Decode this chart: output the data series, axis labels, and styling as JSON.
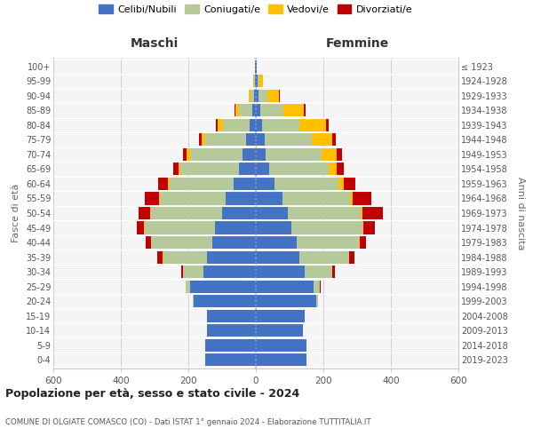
{
  "age_groups": [
    "0-4",
    "5-9",
    "10-14",
    "15-19",
    "20-24",
    "25-29",
    "30-34",
    "35-39",
    "40-44",
    "45-49",
    "50-54",
    "55-59",
    "60-64",
    "65-69",
    "70-74",
    "75-79",
    "80-84",
    "85-89",
    "90-94",
    "95-99",
    "100+"
  ],
  "birth_years": [
    "2019-2023",
    "2014-2018",
    "2009-2013",
    "2004-2008",
    "1999-2003",
    "1994-1998",
    "1989-1993",
    "1984-1988",
    "1979-1983",
    "1974-1978",
    "1969-1973",
    "1964-1968",
    "1959-1963",
    "1954-1958",
    "1949-1953",
    "1944-1948",
    "1939-1943",
    "1934-1938",
    "1929-1933",
    "1924-1928",
    "≤ 1923"
  ],
  "colors": {
    "celibi": "#4472c4",
    "coniugati": "#b5c99a",
    "vedovi": "#ffc000",
    "divorziati": "#c00000"
  },
  "males": {
    "celibi": [
      150,
      150,
      145,
      145,
      185,
      195,
      155,
      145,
      130,
      120,
      100,
      90,
      65,
      50,
      40,
      30,
      18,
      10,
      5,
      3,
      2
    ],
    "coniugati": [
      0,
      0,
      0,
      0,
      2,
      12,
      60,
      130,
      180,
      210,
      210,
      195,
      190,
      175,
      155,
      120,
      80,
      40,
      10,
      2,
      0
    ],
    "vedovi": [
      0,
      0,
      0,
      0,
      0,
      0,
      0,
      1,
      1,
      2,
      2,
      3,
      5,
      5,
      10,
      10,
      15,
      10,
      5,
      2,
      0
    ],
    "divorziati": [
      0,
      0,
      0,
      0,
      0,
      2,
      5,
      15,
      15,
      20,
      35,
      40,
      30,
      15,
      10,
      8,
      5,
      3,
      2,
      0,
      0
    ]
  },
  "females": {
    "celibi": [
      150,
      150,
      140,
      145,
      180,
      170,
      145,
      130,
      120,
      105,
      95,
      80,
      55,
      40,
      30,
      25,
      18,
      12,
      8,
      5,
      2
    ],
    "coniugati": [
      0,
      0,
      0,
      0,
      5,
      20,
      80,
      145,
      185,
      210,
      215,
      200,
      190,
      175,
      165,
      140,
      110,
      70,
      25,
      5,
      0
    ],
    "vedovi": [
      0,
      0,
      0,
      0,
      0,
      0,
      0,
      1,
      2,
      3,
      5,
      8,
      15,
      25,
      45,
      60,
      80,
      60,
      35,
      10,
      0
    ],
    "divorziati": [
      0,
      0,
      0,
      0,
      0,
      3,
      8,
      15,
      20,
      35,
      60,
      55,
      35,
      20,
      15,
      12,
      8,
      5,
      3,
      2,
      0
    ]
  },
  "title_main": "Popolazione per età, sesso e stato civile - 2024",
  "title_sub": "COMUNE DI OLGIATE COMASCO (CO) - Dati ISTAT 1° gennaio 2024 - Elaborazione TUTTITALIA.IT",
  "xlabel_left": "Maschi",
  "xlabel_right": "Femmine",
  "ylabel_left": "Fasce di età",
  "ylabel_right": "Anni di nascita",
  "xlim": 600,
  "legend_labels": [
    "Celibi/Nubili",
    "Coniugati/e",
    "Vedovi/e",
    "Divorziati/e"
  ],
  "background_color": "#ffffff",
  "bar_height": 0.85,
  "grid_color": "#cccccc",
  "plot_bg": "#f5f5f5"
}
